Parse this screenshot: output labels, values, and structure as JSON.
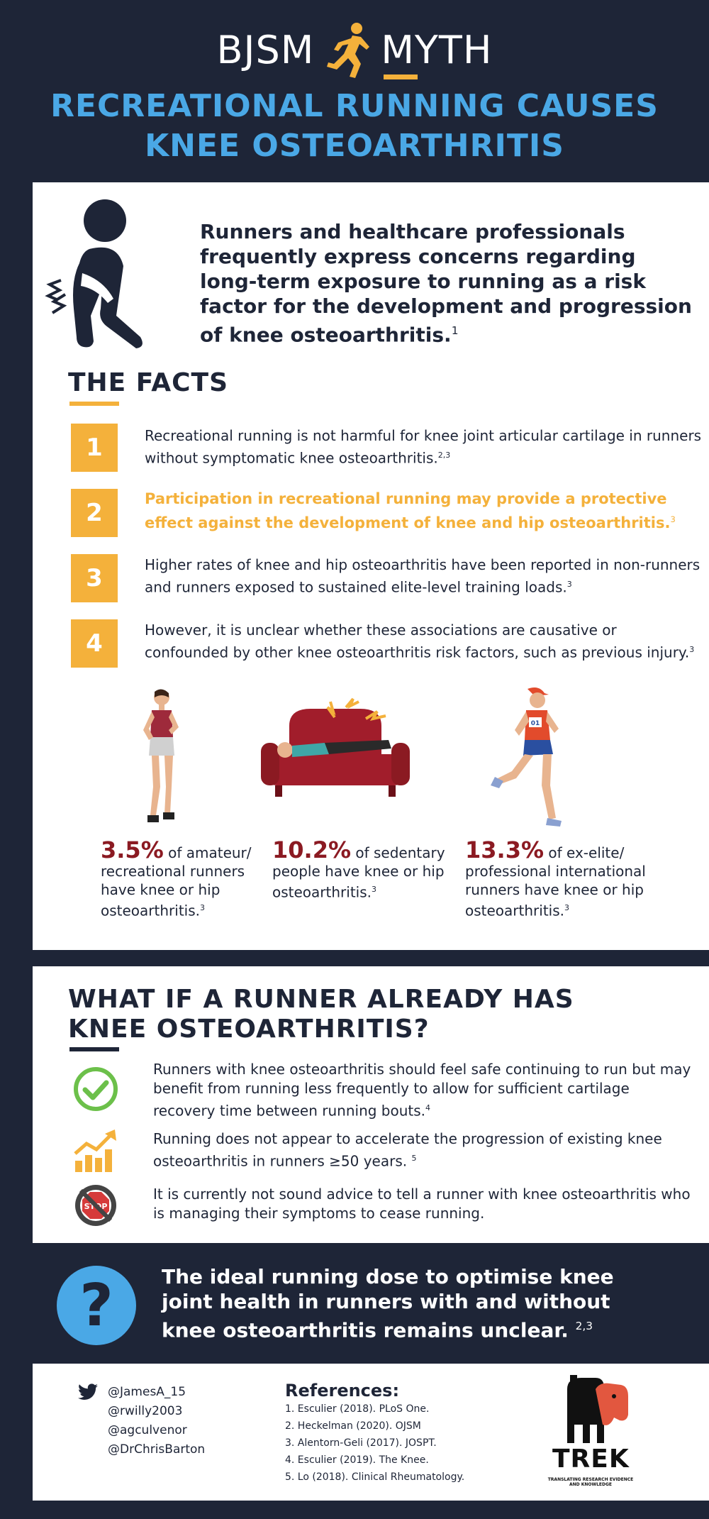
{
  "header": {
    "logo_left": "BJSM",
    "logo_right": "MYTH",
    "title_line1": "RECREATIONAL RUNNING CAUSES",
    "title_line2": "KNEE OSTEOARTHRITIS"
  },
  "intro": {
    "text": "Runners and healthcare professionals frequently express concerns regarding long-term exposure to running as a risk factor for the development and progression of knee osteoarthritis.",
    "ref": "1"
  },
  "facts": {
    "title": "THE FACTS",
    "items": [
      {
        "number": "1",
        "text": "Recreational running is not harmful for knee joint articular cartilage in runners without symptomatic knee osteoarthritis.",
        "ref": "2,3"
      },
      {
        "number": "2",
        "text": "Participation in recreational running may provide a protective effect against the development of knee and hip osteoarthritis.",
        "ref": "3"
      },
      {
        "number": "3",
        "text": "Higher rates of knee and hip osteoarthritis have been reported in non-runners and runners exposed to sustained elite-level training loads.",
        "ref": "3"
      },
      {
        "number": "4",
        "text": "However, it is unclear whether these associations are causative or confounded by other knee osteoarthritis risk factors, such as previous injury.",
        "ref": "3"
      }
    ]
  },
  "stats": [
    {
      "pct": "3.5%",
      "text": "of amateur/ recreational runners have knee or hip osteoarthritis.",
      "ref": "3"
    },
    {
      "pct": "10.2%",
      "text": "of sedentary people have knee or hip osteoarthritis.",
      "ref": "3"
    },
    {
      "pct": "13.3%",
      "text": "of ex-elite/ professional international runners have knee or hip osteoarthritis.",
      "ref": "3"
    }
  ],
  "runner_bib": "01",
  "whatif": {
    "title_line1": "WHAT IF A RUNNER ALREADY HAS",
    "title_line2": "KNEE OSTEOARTHRITIS?",
    "items": [
      {
        "icon": "check-circle-icon",
        "text": "Runners with knee osteoarthritis should feel safe continuing to run but may benefit from running less frequently to allow for sufficient cartilage recovery time between running bouts.",
        "ref": "4"
      },
      {
        "icon": "growth-chart-icon",
        "text": "Running does not appear to accelerate the progression of existing knee osteoarthritis in runners ≥50 years.",
        "ref": "5"
      },
      {
        "icon": "stop-sign-icon",
        "text": "It is currently not sound advice to tell a runner with knee osteoarthritis who is managing their symptoms to cease running.",
        "ref": ""
      }
    ]
  },
  "stop_sign_text": "STOP",
  "question": {
    "symbol": "?",
    "text": "The ideal running dose to optimise knee joint health in runners with and without knee osteoarthritis remains unclear.",
    "ref": "2,3"
  },
  "footer": {
    "social": [
      "@JamesA_15",
      "@rwilly2003",
      "@agculvenor",
      "@DrChrisBarton"
    ],
    "references_title": "References:",
    "references": [
      "1. Esculier (2018). PLoS One.",
      "2. Heckelman (2020). OJSM",
      "3. Alentorn-Geli (2017). JOSPT.",
      "4. Esculier (2019). The Knee.",
      "5. Lo (2018). Clinical Rheumatology."
    ],
    "trek_name": "TREK",
    "trek_tagline": "TRANSLATING RESEARCH EVIDENCE AND KNOWLEDGE"
  },
  "colors": {
    "navy": "#1e2537",
    "blue": "#4aa8e6",
    "gold": "#f4b13b",
    "maroon": "#8b1a22",
    "green": "#6cc04a"
  }
}
